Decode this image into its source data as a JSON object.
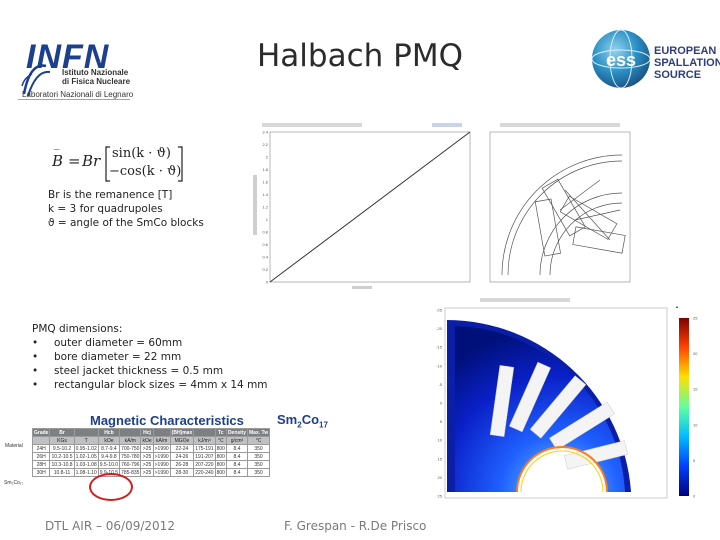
{
  "slide": {
    "title": "Halbach PMQ",
    "footer_left": "DTL AIR – 06/09/2012",
    "footer_right": "F. Grespan - R.De Prisco"
  },
  "infn_logo": {
    "name": "INFN",
    "line1": "Istituto Nazionale",
    "line2": "di Fisica Nucleare",
    "lab": "Laboratori Nazionali di Legnaro",
    "color": "#1d3f8f"
  },
  "ess_logo": {
    "mark": "ess",
    "line1": "EUROPEAN",
    "line2": "SPALLATION",
    "line3": "SOURCE",
    "color": "#2f3e7a"
  },
  "formula": {
    "lhs": "B",
    "eq": "=",
    "coef": "Br",
    "row1": "sin(k · ϑ)",
    "row2": "−cos(k · ϑ)"
  },
  "notes": [
    "Br is the remanence [T]",
    "k = 3 for quadrupoles",
    "ϑ = angle of the SmCo blocks"
  ],
  "pmq": {
    "heading": "PMQ dimensions:",
    "items": [
      "outer diameter = 60mm",
      "bore diameter = 22 mm",
      "steel jacket thickness = 0.5 mm",
      "rectangular block sizes = 4mm x 14 mm"
    ]
  },
  "magnetic": {
    "title": "Magnetic Characteristics",
    "material_prefix": "Sm",
    "material_sub1": "2",
    "material_mid": "Co",
    "material_sub2": "17",
    "side_material": "Material",
    "side_formula": "Sm₂Co₁₇",
    "headers": [
      "Grade",
      "Br",
      "",
      "Hcb",
      "",
      "Hcj",
      "",
      "(BH)max",
      "",
      "Tc",
      "Density",
      "Max. Tw"
    ],
    "units": [
      "",
      "KGs",
      "T",
      "kOe",
      "kA/m",
      "kOe",
      "kA/m",
      "MGOe",
      "kJ/m³",
      "°C",
      "g/cm³",
      "°C"
    ],
    "rows": [
      [
        "24H",
        "9.5-10.2",
        "0.95-1.02",
        "8.7-9.4",
        "700-750",
        ">25",
        ">1990",
        "22-24",
        "175-191",
        "800",
        "8.4",
        "350"
      ],
      [
        "26H",
        "10.2-10.5",
        "1.02-1.05",
        "9.4-9.8",
        "750-780",
        ">25",
        ">1990",
        "24-26",
        "191-207",
        "800",
        "8.4",
        "350"
      ],
      [
        "28H",
        "10.3-10.8",
        "1.03-1.08",
        "9.5-10.0",
        "760-796",
        ">25",
        ">1990",
        "26-28",
        "207-220",
        "800",
        "8.4",
        "350"
      ],
      [
        "30H",
        "10.8-11",
        "1.08-1.10",
        "9.9-10.5",
        "785-835",
        ">25",
        ">1990",
        "28-30",
        "220-240",
        "800",
        "8.4",
        "350"
      ]
    ]
  },
  "chart_data": [
    {
      "type": "line",
      "title": "",
      "xlabel": "",
      "ylabel": "",
      "x": [
        0,
        1
      ],
      "y": [
        0,
        2.4
      ],
      "ylim": [
        0,
        2.4
      ],
      "y_ticks": [
        "0",
        "0.2",
        "0.4",
        "0.6",
        "0.8",
        "1",
        "1.2",
        "1.4",
        "1.6",
        "1.8",
        "2",
        "2.2",
        "2.4"
      ],
      "grid": false
    },
    {
      "type": "heatmap",
      "title": "",
      "y_ticks": [
        "-25",
        "-20",
        "-15",
        "-10",
        "-5",
        "0",
        "5",
        "10",
        "15",
        "20",
        "25"
      ],
      "colorbar_ticks": [
        "0",
        "5",
        "10",
        "15",
        "20",
        "25"
      ],
      "colorbar_scale": [
        "#00007f",
        "#0040ff",
        "#00c0ff",
        "#60ff9f",
        "#ffe000",
        "#ff4000",
        "#7f0000"
      ]
    }
  ]
}
